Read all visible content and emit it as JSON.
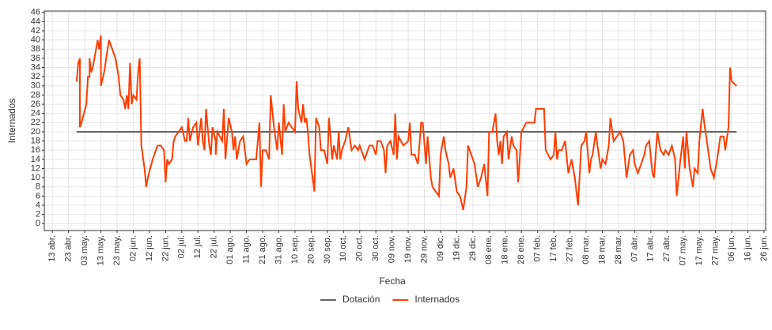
{
  "chart_data": {
    "type": "line",
    "x_label": "Fecha",
    "y_label": "Internados",
    "xlim": [
      -5,
      441
    ],
    "ylim": [
      -1.5,
      46.3
    ],
    "grid": true,
    "legend": "bottom",
    "yticks": [
      0,
      2,
      4,
      6,
      8,
      10,
      12,
      14,
      16,
      18,
      20,
      22,
      24,
      26,
      28,
      30,
      32,
      34,
      36,
      38,
      40,
      42,
      44,
      46
    ],
    "xticks": [
      {
        "value": 0,
        "label": "13 abr."
      },
      {
        "value": 10,
        "label": "23 abr."
      },
      {
        "value": 20,
        "label": "03 may."
      },
      {
        "value": 30,
        "label": "13 may."
      },
      {
        "value": 40,
        "label": "23 may."
      },
      {
        "value": 50,
        "label": "02 jun."
      },
      {
        "value": 60,
        "label": "12 jun."
      },
      {
        "value": 70,
        "label": "22 jun."
      },
      {
        "value": 80,
        "label": "02 jul."
      },
      {
        "value": 90,
        "label": "12 jul."
      },
      {
        "value": 100,
        "label": "22 jul."
      },
      {
        "value": 110,
        "label": "01 ago."
      },
      {
        "value": 120,
        "label": "11 ago."
      },
      {
        "value": 130,
        "label": "21 ago."
      },
      {
        "value": 140,
        "label": "31 ago."
      },
      {
        "value": 150,
        "label": "10 sep."
      },
      {
        "value": 160,
        "label": "20 sep."
      },
      {
        "value": 170,
        "label": "30 sep."
      },
      {
        "value": 180,
        "label": "10 oct."
      },
      {
        "value": 190,
        "label": "20 oct."
      },
      {
        "value": 200,
        "label": "30 oct."
      },
      {
        "value": 210,
        "label": "09 nov."
      },
      {
        "value": 220,
        "label": "19 nov."
      },
      {
        "value": 230,
        "label": "29 nov."
      },
      {
        "value": 240,
        "label": "09 dic."
      },
      {
        "value": 250,
        "label": "19 dic."
      },
      {
        "value": 260,
        "label": "29 dic."
      },
      {
        "value": 270,
        "label": "08 ene."
      },
      {
        "value": 280,
        "label": "18 ene."
      },
      {
        "value": 290,
        "label": "28 ene."
      },
      {
        "value": 300,
        "label": "07 feb."
      },
      {
        "value": 310,
        "label": "17 feb."
      },
      {
        "value": 320,
        "label": "27 feb."
      },
      {
        "value": 330,
        "label": "08 mar."
      },
      {
        "value": 340,
        "label": "18 mar."
      },
      {
        "value": 350,
        "label": "28 mar."
      },
      {
        "value": 360,
        "label": "07 abr."
      },
      {
        "value": 370,
        "label": "17 abr."
      },
      {
        "value": 380,
        "label": "27 abr."
      },
      {
        "value": 390,
        "label": "07 may."
      },
      {
        "value": 400,
        "label": "17 may."
      },
      {
        "value": 410,
        "label": "27 may."
      },
      {
        "value": 420,
        "label": "06 jun."
      },
      {
        "value": 430,
        "label": "16 jun."
      },
      {
        "value": 440,
        "label": "26 jun."
      }
    ],
    "series": [
      {
        "name": "Dotación",
        "color": "#666666",
        "x": [
          15,
          423
        ],
        "values": [
          20,
          20
        ]
      },
      {
        "name": "Internados",
        "color": "#ff3d00",
        "x": [
          15,
          16,
          17,
          17,
          18,
          21,
          22,
          23,
          23,
          24,
          25,
          27,
          28,
          29,
          30,
          30,
          32,
          35,
          39,
          41,
          42,
          44,
          45,
          46,
          47,
          48,
          49,
          50,
          52,
          53,
          54,
          55,
          57,
          58,
          59,
          62,
          65,
          67,
          69,
          70,
          71,
          72,
          74,
          75,
          76,
          78,
          80,
          82,
          83,
          84,
          85,
          87,
          89,
          90,
          92,
          93,
          94,
          95,
          97,
          98,
          99,
          101,
          101,
          102,
          105,
          106,
          107,
          109,
          111,
          112,
          113,
          114,
          115,
          116,
          118,
          120,
          122,
          125,
          126,
          128,
          129,
          130,
          132,
          134,
          135,
          137,
          139,
          140,
          142,
          143,
          144,
          146,
          148,
          150,
          151,
          152,
          154,
          155,
          156,
          157,
          158,
          159,
          162,
          163,
          165,
          166,
          168,
          170,
          171,
          173,
          174,
          176,
          177,
          178,
          179,
          181,
          183,
          185,
          187,
          189,
          190,
          192,
          193,
          196,
          198,
          200,
          201,
          203,
          205,
          206,
          207,
          209,
          211,
          212,
          213,
          214,
          217,
          220,
          221,
          222,
          224,
          226,
          228,
          229,
          231,
          232,
          234,
          235,
          237,
          239,
          240,
          242,
          243,
          245,
          246,
          248,
          250,
          252,
          254,
          256,
          257,
          259,
          261,
          263,
          265,
          267,
          269,
          270,
          272,
          274,
          275,
          276,
          277,
          278,
          279,
          281,
          282,
          284,
          285,
          287,
          288,
          290,
          293,
          295,
          298,
          299,
          302,
          304,
          305,
          308,
          310,
          311,
          312,
          313,
          315,
          317,
          319,
          321,
          323,
          325,
          327,
          329,
          330,
          332,
          333,
          334,
          336,
          337,
          339,
          340,
          342,
          344,
          345,
          347,
          349,
          351,
          352,
          353,
          355,
          357,
          359,
          360,
          362,
          364,
          366,
          367,
          369,
          371,
          372,
          374,
          376,
          378,
          379,
          381,
          383,
          385,
          386,
          388,
          390,
          391,
          392,
          394,
          396,
          397,
          399,
          400,
          402,
          403,
          405,
          407,
          409,
          411,
          413,
          415,
          416,
          418,
          419,
          420,
          423
        ],
        "values": [
          31,
          35,
          36,
          21,
          22,
          26,
          32,
          32,
          36,
          33,
          34,
          38,
          40,
          38,
          41,
          30,
          33,
          40,
          36,
          32,
          28,
          27,
          25,
          28,
          25,
          35,
          26,
          28,
          27,
          33,
          36,
          17,
          12,
          8,
          10,
          14,
          17,
          17,
          16,
          9,
          14,
          13,
          14,
          18,
          19,
          20,
          21,
          18,
          18,
          23,
          18,
          21,
          22,
          17,
          23,
          18,
          16,
          25,
          17,
          15,
          21,
          18,
          15,
          20,
          18,
          25,
          14,
          23,
          20,
          16,
          19,
          14,
          16,
          18,
          19,
          13,
          14,
          14,
          14,
          22,
          8,
          16,
          16,
          14,
          28,
          21,
          16,
          22,
          15,
          26,
          20,
          22,
          21,
          20,
          31,
          25,
          22,
          26,
          22,
          23,
          20,
          15,
          7,
          23,
          21,
          16,
          16,
          13,
          23,
          14,
          17,
          14,
          20,
          14,
          16,
          18,
          21,
          16,
          17,
          16,
          17,
          15,
          14,
          17,
          17,
          15,
          18,
          18,
          16,
          11,
          17,
          18,
          15,
          24,
          14,
          19,
          17,
          18,
          22,
          15,
          15,
          13,
          22,
          22,
          13,
          19,
          10,
          8,
          7,
          6,
          15,
          19,
          16,
          13,
          10,
          12,
          7,
          6,
          3,
          8,
          17,
          15,
          13,
          8,
          10,
          13,
          6,
          20,
          20,
          24,
          18,
          15,
          18,
          13,
          19,
          20,
          14,
          19,
          17,
          16,
          9,
          20,
          22,
          22,
          22,
          25,
          25,
          25,
          16,
          14,
          15,
          20,
          14,
          16,
          16,
          18,
          11,
          14,
          10,
          4,
          17,
          18,
          20,
          11,
          14,
          15,
          20,
          17,
          12,
          14,
          13,
          17,
          23,
          18,
          19,
          20,
          19,
          18,
          10,
          15,
          16,
          13,
          11,
          13,
          15,
          17,
          18,
          11,
          10,
          20,
          16,
          15,
          16,
          15,
          17,
          14,
          6,
          13,
          19,
          12,
          20,
          12,
          8,
          12,
          11,
          18,
          25,
          22,
          17,
          12,
          10,
          14,
          19,
          19,
          16,
          21,
          34,
          31,
          30
        ]
      }
    ]
  }
}
